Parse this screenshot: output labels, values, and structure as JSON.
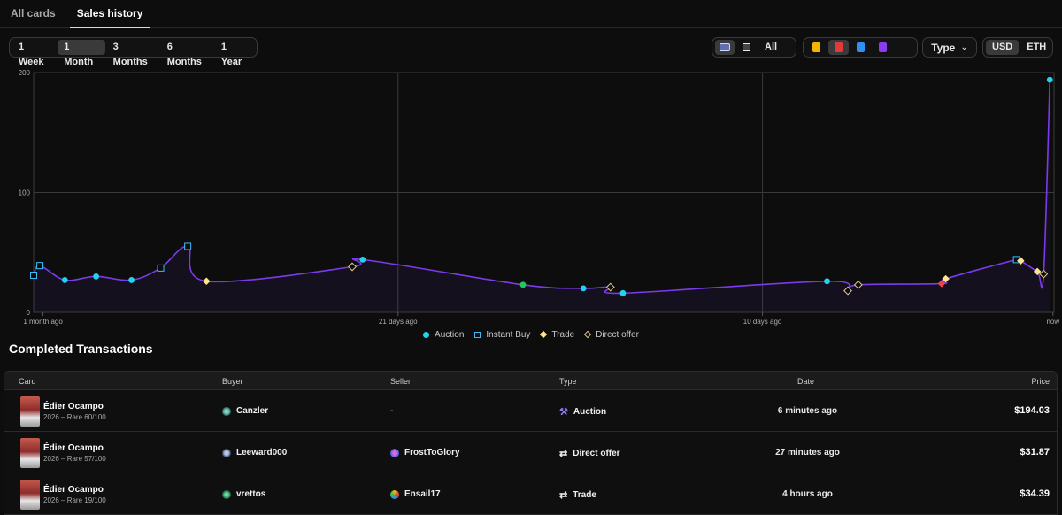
{
  "tabs": [
    "All cards",
    "Sales history"
  ],
  "time_filters": [
    "1 Week",
    "1 Month",
    "3 Months",
    "6 Months",
    "1 Year"
  ],
  "selected_time": "1 Month",
  "view_toggle": {
    "all_label": "All"
  },
  "type_dropdown": {
    "label": "Type"
  },
  "currency": [
    "USD",
    "ETH"
  ],
  "selected_currency": "USD",
  "rarity_icons": [
    {
      "icon": "limited-card-icon",
      "color": "#f5b400"
    },
    {
      "icon": "rare-card-icon",
      "color": "#e23a3a"
    },
    {
      "icon": "super-rare-card-icon",
      "color": "#2f8ff5"
    },
    {
      "icon": "unique-card-icon",
      "color": "#8b3bf0"
    }
  ],
  "chart_data": {
    "type": "line",
    "x_ticks": [
      "1 month ago",
      "21 days ago",
      "10 days ago",
      "now"
    ],
    "y_ticks": [
      0,
      100,
      200
    ],
    "ylim": [
      0,
      200
    ],
    "grid": true,
    "legend_position": "bottom",
    "series_color": "#7c3aed",
    "legend": [
      {
        "name": "Auction",
        "marker": "circle",
        "color": "#22d3ee"
      },
      {
        "name": "Instant Buy",
        "marker": "square",
        "color": "#38bdf8"
      },
      {
        "name": "Trade",
        "marker": "diamond",
        "color": "#fde68a"
      },
      {
        "name": "Direct offer",
        "marker": "diamond-outline",
        "color": "#e5c99a"
      }
    ],
    "points": [
      {
        "x": 0.0,
        "y": 31,
        "m": "square"
      },
      {
        "x": 0.3,
        "y": 39,
        "m": "square"
      },
      {
        "x": 1.5,
        "y": 27,
        "m": "circle"
      },
      {
        "x": 3.0,
        "y": 30,
        "m": "circle"
      },
      {
        "x": 4.7,
        "y": 27,
        "m": "circle"
      },
      {
        "x": 6.1,
        "y": 37,
        "m": "square"
      },
      {
        "x": 7.4,
        "y": 55,
        "m": "square"
      },
      {
        "x": 8.3,
        "y": 26,
        "m": "diamond",
        "c": "#fde68a"
      },
      {
        "x": 15.3,
        "y": 38,
        "m": "diamond-outline"
      },
      {
        "x": 15.8,
        "y": 44,
        "m": "circle"
      },
      {
        "x": 23.5,
        "y": 23,
        "m": "circle",
        "c": "#22c55e"
      },
      {
        "x": 26.4,
        "y": 20,
        "m": "circle"
      },
      {
        "x": 27.7,
        "y": 21,
        "m": "diamond-outline"
      },
      {
        "x": 28.3,
        "y": 16,
        "m": "circle"
      },
      {
        "x": 38.1,
        "y": 26,
        "m": "circle"
      },
      {
        "x": 39.1,
        "y": 18,
        "m": "diamond-outline"
      },
      {
        "x": 39.6,
        "y": 23,
        "m": "diamond-outline"
      },
      {
        "x": 43.6,
        "y": 24,
        "m": "diamond",
        "c": "#ef4444"
      },
      {
        "x": 43.8,
        "y": 28,
        "m": "diamond",
        "c": "#fde68a"
      },
      {
        "x": 47.2,
        "y": 44,
        "m": "square"
      },
      {
        "x": 47.4,
        "y": 43,
        "m": "diamond",
        "c": "#fde68a"
      },
      {
        "x": 48.2,
        "y": 34,
        "m": "diamond",
        "c": "#fde68a"
      },
      {
        "x": 48.5,
        "y": 32,
        "m": "diamond-outline"
      },
      {
        "x": 48.8,
        "y": 194,
        "m": "circle"
      }
    ]
  },
  "transactions": {
    "title": "Completed Transactions",
    "headers": {
      "card": "Card",
      "buyer": "Buyer",
      "seller": "Seller",
      "type": "Type",
      "date": "Date",
      "price": "Price"
    },
    "rows": [
      {
        "card": "Édier Ocampo",
        "sub": "2026 – Rare 60/100",
        "buyer": "Canzler",
        "seller": "-",
        "type": "Auction",
        "type_icon": "gavel-icon",
        "date": "6 minutes ago",
        "price": "$194.03"
      },
      {
        "card": "Édier Ocampo",
        "sub": "2026 – Rare 57/100",
        "buyer": "Leeward000",
        "seller": "FrostToGlory",
        "type": "Direct offer",
        "type_icon": "swap-icon",
        "date": "27 minutes ago",
        "price": "$31.87"
      },
      {
        "card": "Édier Ocampo",
        "sub": "2026 – Rare 19/100",
        "buyer": "vrettos",
        "seller": "Ensail17",
        "type": "Trade",
        "type_icon": "swap-icon",
        "date": "4 hours ago",
        "price": "$34.39"
      }
    ]
  }
}
